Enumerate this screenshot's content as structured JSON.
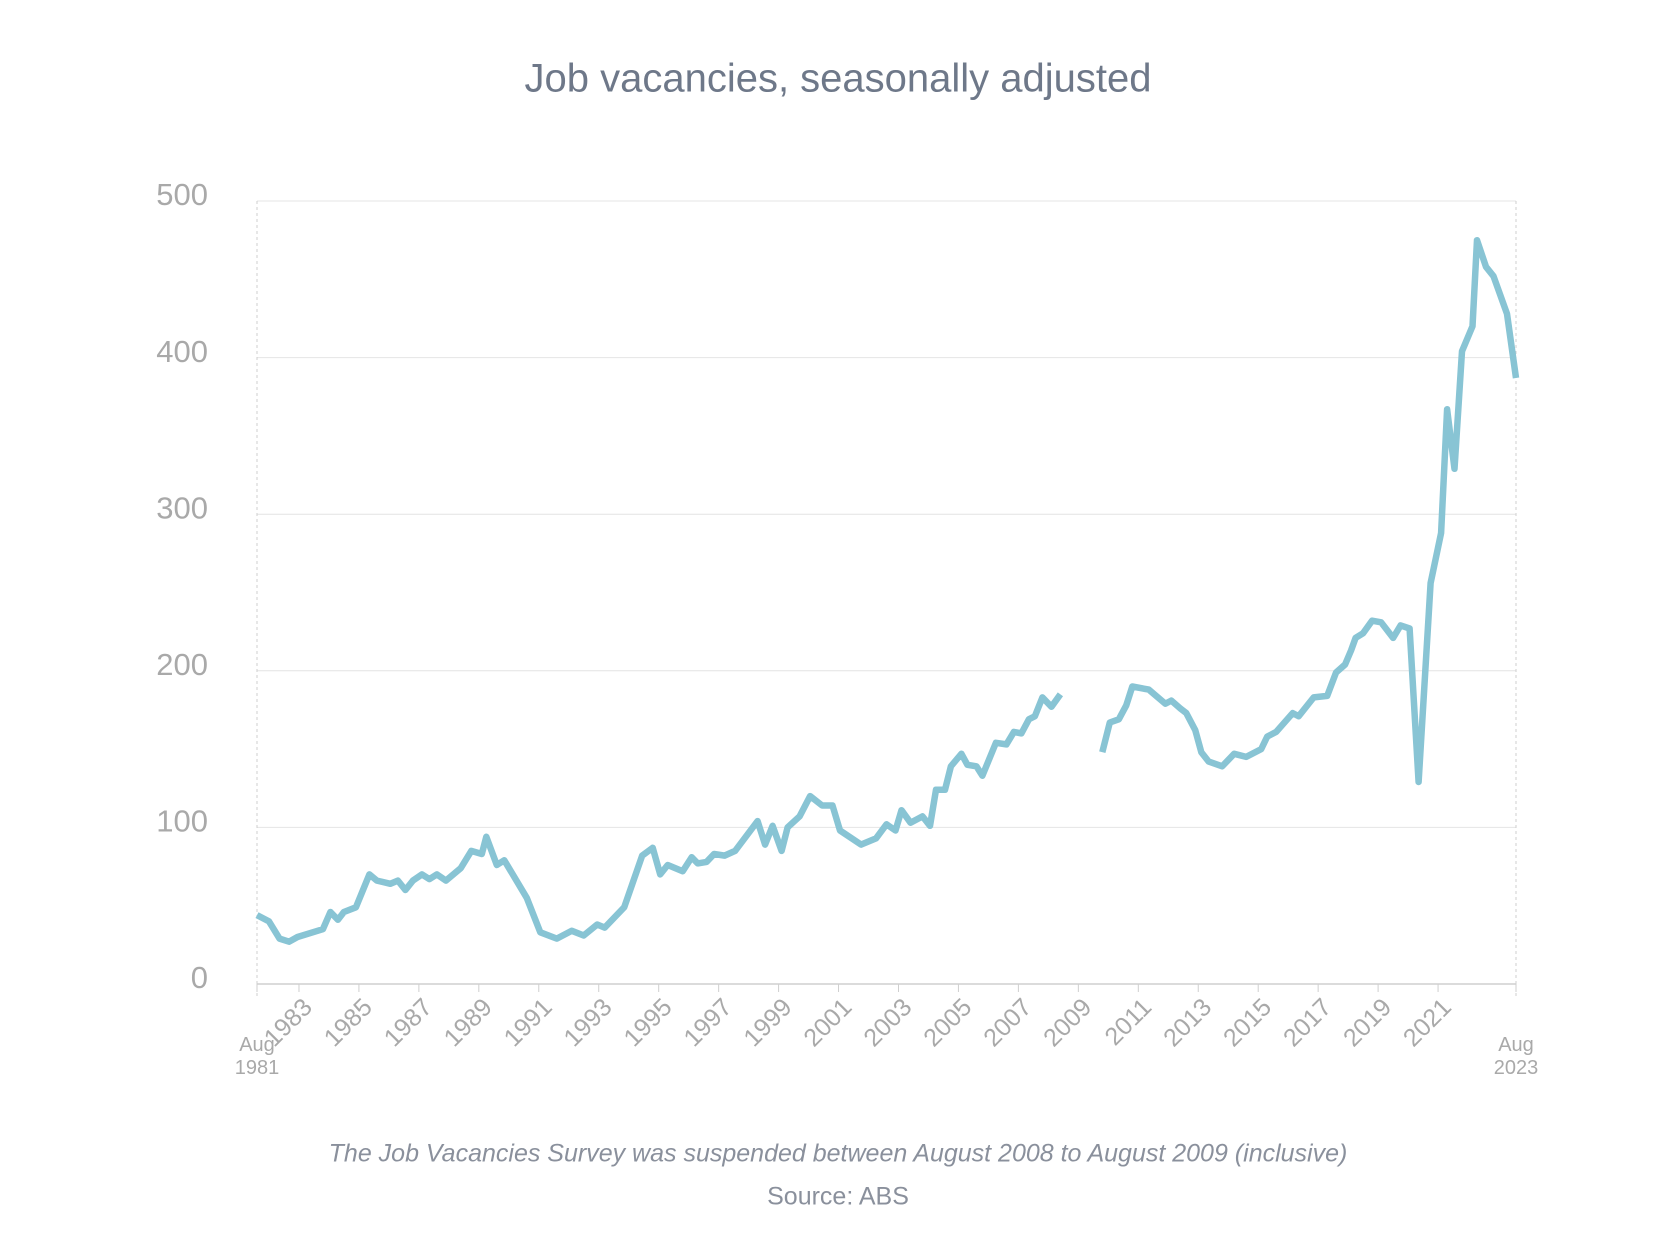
{
  "chart_data": {
    "type": "line",
    "title": "Job vacancies, seasonally adjusted",
    "note": "The Job Vacancies Survey was suspended between August 2008 to August 2009 (inclusive)",
    "source": "Source: ABS",
    "xlim": [
      1981.6,
      2023.6
    ],
    "xticks": [
      {
        "value": 1981.6,
        "label": "Aug 1981"
      },
      1983,
      1985,
      1987,
      1989,
      1991,
      1993,
      1995,
      1997,
      1999,
      2001,
      2003,
      2005,
      2007,
      2009,
      2011,
      2013,
      2015,
      2017,
      2019,
      2021,
      {
        "value": 2023.6,
        "label": "Aug 2023"
      }
    ],
    "ylim": [
      0,
      500
    ],
    "yticks": [
      0,
      100,
      200,
      300,
      400,
      500
    ],
    "grid": true,
    "x": [
      1981.6,
      1982.0,
      1982.35,
      1982.67,
      1982.95,
      1983.8,
      1984.05,
      1984.3,
      1984.5,
      1984.9,
      1985.35,
      1985.6,
      1986.05,
      1986.3,
      1986.55,
      1986.8,
      1987.1,
      1987.35,
      1987.6,
      1987.9,
      1988.4,
      1988.75,
      1989.1,
      1989.25,
      1989.6,
      1989.85,
      1990.6,
      1991.05,
      1991.6,
      1992.1,
      1992.5,
      1992.95,
      1993.2,
      1993.85,
      1994.45,
      1994.8,
      1995.05,
      1995.3,
      1995.8,
      1996.1,
      1996.3,
      1996.6,
      1996.85,
      1997.2,
      1997.55,
      1998.3,
      1998.55,
      1998.8,
      1999.1,
      1999.3,
      1999.7,
      2000.05,
      2000.45,
      2000.8,
      2001.05,
      2001.75,
      2002.25,
      2002.6,
      2002.9,
      2003.1,
      2003.4,
      2003.8,
      2004.05,
      2004.25,
      2004.55,
      2004.75,
      2005.1,
      2005.3,
      2005.6,
      2005.8,
      2006.25,
      2006.6,
      2006.85,
      2007.1,
      2007.35,
      2007.55,
      2007.8,
      2008.1,
      2008.4,
      2009.0,
      2009.8,
      2010.05,
      2010.35,
      2010.6,
      2010.8,
      2011.35,
      2011.9,
      2012.1,
      2012.4,
      2012.6,
      2012.9,
      2013.1,
      2013.35,
      2013.8,
      2014.2,
      2014.6,
      2015.1,
      2015.3,
      2015.6,
      2016.15,
      2016.35,
      2016.85,
      2017.3,
      2017.6,
      2017.9,
      2018.1,
      2018.25,
      2018.5,
      2018.8,
      2019.1,
      2019.5,
      2019.75,
      2020.05,
      2020.35,
      2020.75,
      2021.1,
      2021.3,
      2021.55,
      2021.8,
      2022.15,
      2022.3,
      2022.6,
      2022.85,
      2023.3,
      2023.6
    ],
    "series": [
      {
        "name": "Job vacancies",
        "color": "#88c4d4",
        "values": [
          44,
          40,
          29,
          27,
          30,
          35,
          46,
          41,
          46,
          49,
          70,
          66,
          64,
          66,
          60,
          66,
          70,
          67,
          70,
          66,
          74,
          85,
          83,
          94,
          76,
          79,
          55,
          33,
          29,
          34,
          31,
          38,
          36,
          49,
          82,
          87,
          70,
          76,
          72,
          81,
          77,
          78,
          83,
          82,
          85,
          104,
          89,
          101,
          85,
          100,
          107,
          120,
          114,
          114,
          98,
          89,
          93,
          102,
          98,
          111,
          103,
          107,
          101,
          124,
          124,
          139,
          147,
          140,
          139,
          133,
          154,
          153,
          161,
          160,
          169,
          171,
          183,
          177,
          185,
          null,
          148,
          167,
          169,
          178,
          190,
          188,
          179,
          181,
          176,
          173,
          162,
          148,
          142,
          139,
          147,
          145,
          150,
          158,
          161,
          173,
          171,
          183,
          184,
          199,
          204,
          213,
          221,
          224,
          232,
          231,
          221,
          229,
          227,
          129,
          256,
          288,
          367,
          329,
          404,
          420,
          475,
          458,
          452,
          428,
          387
        ]
      }
    ]
  }
}
